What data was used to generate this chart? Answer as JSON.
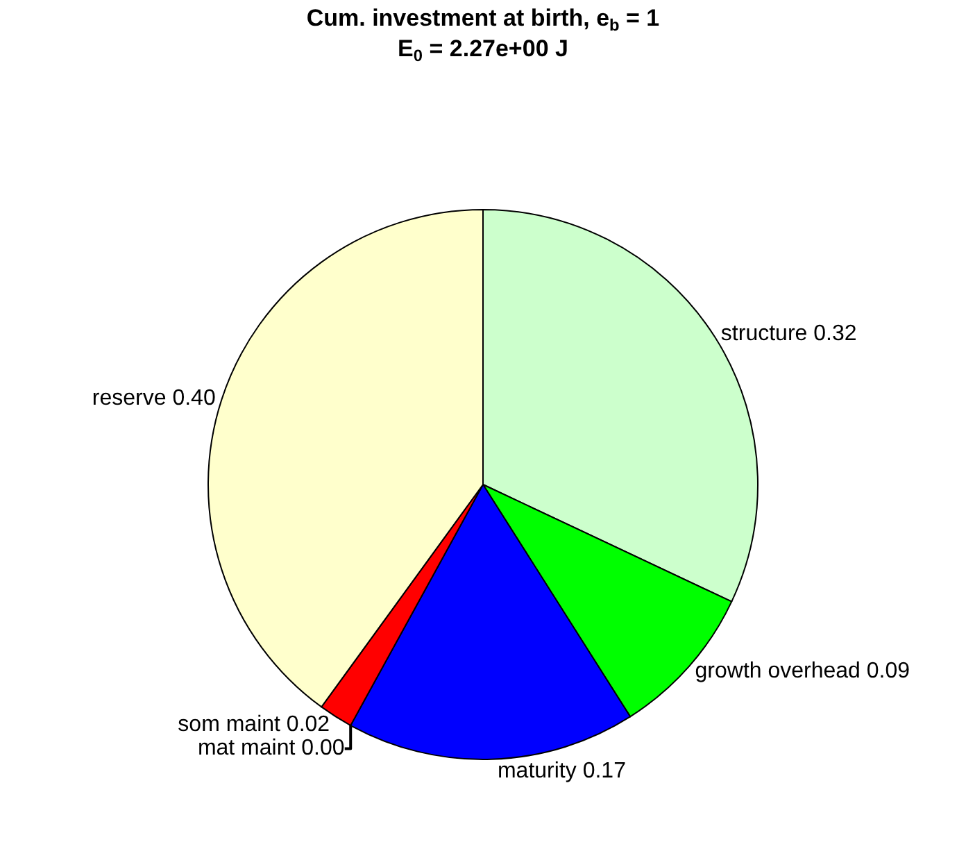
{
  "chart_data": {
    "type": "pie",
    "title": "Cum. investment at birth, e$_{b}$ = 1",
    "subtitle": "E$_{0}$ = 2.27e+00 J",
    "categories": [
      "structure",
      "growth overhead",
      "maturity",
      "mat maint",
      "som maint",
      "reserve"
    ],
    "values": [
      0.32,
      0.09,
      0.17,
      0.0,
      0.02,
      0.4
    ],
    "value_labels": [
      "0.32",
      "0.09",
      "0.17",
      "0.00",
      "0.02",
      "0.40"
    ],
    "colors": [
      "#ccffcc",
      "#00ff00",
      "#0000ff",
      "#ff00ff",
      "#ff0000",
      "#ffffcc"
    ],
    "legend": false
  }
}
